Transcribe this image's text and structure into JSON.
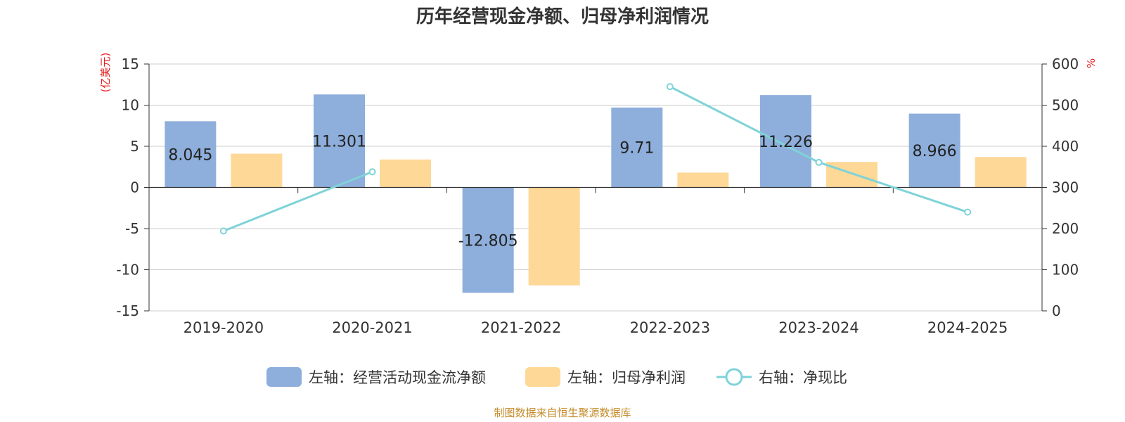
{
  "title": "历年经营现金净额、归母净利润情况",
  "source": "制图数据来自恒生聚源数据库",
  "colors": {
    "series_cash": "#8eaedb",
    "series_profit": "#fed897",
    "series_ratio": "#7fd3d8",
    "axis_unit": "#e81d1d",
    "source": "#c48b2a"
  },
  "legend": [
    {
      "label": "左轴：经营活动现金流净额",
      "icon": "rounded-rect"
    },
    {
      "label": "左轴：归母净利润",
      "icon": "rounded-rect"
    },
    {
      "label": "右轴：净现比",
      "icon": "line-circle"
    }
  ],
  "chart_data": {
    "type": "bar",
    "categories": [
      "2019-2020",
      "2020-2021",
      "2021-2022",
      "2022-2023",
      "2023-2024",
      "2024-2025"
    ],
    "left_axis": {
      "unit_label": "(亿美元)",
      "ylim": [
        -15,
        15
      ],
      "ticks": [
        15,
        10,
        5,
        0,
        -5,
        -10,
        -15
      ]
    },
    "right_axis": {
      "unit_label": "%",
      "ylim": [
        0,
        600
      ],
      "ticks": [
        600,
        500,
        400,
        300,
        200,
        100,
        0
      ]
    },
    "grid": true,
    "legend_position": "bottom",
    "series": [
      {
        "name": "左轴：经营活动现金流净额",
        "type": "bar",
        "axis": "left",
        "values": [
          8.045,
          11.301,
          -12.805,
          9.71,
          11.226,
          8.966
        ],
        "labels": [
          "8.045",
          "11.301",
          "-12.805",
          "9.71",
          "11.226",
          "8.966"
        ]
      },
      {
        "name": "左轴：归母净利润",
        "type": "bar",
        "axis": "left",
        "values": [
          4.1,
          3.4,
          -11.9,
          1.8,
          3.1,
          3.7
        ]
      },
      {
        "name": "右轴：净现比",
        "type": "line",
        "axis": "right",
        "values": [
          194,
          338,
          null,
          545,
          361,
          240
        ]
      }
    ]
  }
}
